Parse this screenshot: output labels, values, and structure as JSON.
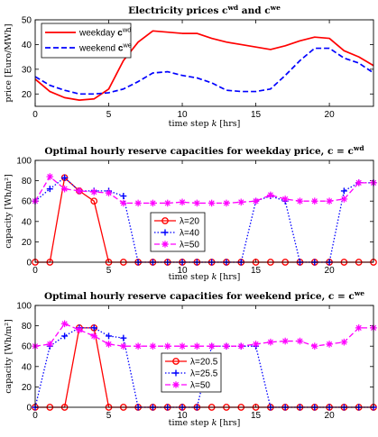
{
  "chart_data": [
    {
      "type": "line",
      "title": "Electricity prices cwd and cwe",
      "title_main": "Electricity prices ",
      "title_c1": "c",
      "title_sup1": "wd",
      "title_and": " and ",
      "title_c2": "c",
      "title_sup2": "we",
      "xlabel_pre": "time step ",
      "xlabel_var": "k",
      "xlabel_post": " [hrs]",
      "ylabel": "price [Euro/MWh]",
      "xlim": [
        0,
        23
      ],
      "ylim": [
        15,
        50
      ],
      "xticks": [
        "0",
        "5",
        "10",
        "15",
        "20"
      ],
      "yticks": [
        "20",
        "30",
        "40",
        "50"
      ],
      "legend_position": "top-left",
      "x": [
        0,
        1,
        2,
        3,
        4,
        5,
        6,
        7,
        8,
        9,
        10,
        11,
        12,
        13,
        14,
        15,
        16,
        17,
        18,
        19,
        20,
        21,
        22,
        23
      ],
      "series": [
        {
          "name": "weekday cwd",
          "legend_text": "weekday",
          "legend_c": "c",
          "legend_sup": "wd",
          "color": "#ff0000",
          "dash": "solid",
          "values": [
            26,
            21,
            18.5,
            17.5,
            18,
            22,
            33.5,
            41,
            45.5,
            45,
            44.5,
            44.5,
            42.5,
            41,
            40,
            39,
            38,
            39.5,
            41.5,
            43,
            42.5,
            37.5,
            35,
            31.5
          ]
        },
        {
          "name": "weekend cwe",
          "legend_text": "weekend",
          "legend_c": "c",
          "legend_sup": "we",
          "color": "#0000ff",
          "dash": "dashed",
          "values": [
            27,
            23.5,
            21.5,
            20,
            20,
            20.5,
            22,
            25,
            28.5,
            29,
            27.5,
            26.5,
            24.5,
            21.5,
            21,
            21,
            22,
            27.5,
            33.5,
            38.5,
            38.5,
            34.5,
            32.5,
            28.5
          ]
        }
      ]
    },
    {
      "type": "line",
      "title": "Optimal hourly reserve capacities for weekday price, c = cwd",
      "title_main": "Optimal hourly reserve capacities for weekday price, ",
      "title_c1": "c",
      "title_eq": " = ",
      "title_c2": "c",
      "title_sup2": "wd",
      "xlabel_pre": "time step ",
      "xlabel_var": "k",
      "xlabel_post": " [hrs]",
      "ylabel": "capacity [Wh/m²]",
      "xlim": [
        0,
        23
      ],
      "ylim": [
        0,
        100
      ],
      "xticks": [
        "0",
        "5",
        "10",
        "15",
        "20"
      ],
      "yticks": [
        "0",
        "20",
        "40",
        "60",
        "80",
        "100"
      ],
      "legend_position": "center-left",
      "x": [
        0,
        1,
        2,
        3,
        4,
        5,
        6,
        7,
        8,
        9,
        10,
        11,
        12,
        13,
        14,
        15,
        16,
        17,
        18,
        19,
        20,
        21,
        22,
        23
      ],
      "series": [
        {
          "name": "λ=20",
          "color": "#ff0000",
          "dash": "solid",
          "marker": "circle",
          "values": [
            0,
            0,
            83,
            70,
            60,
            0,
            0,
            0,
            0,
            0,
            0,
            0,
            0,
            0,
            0,
            0,
            0,
            0,
            0,
            0,
            0,
            0,
            0,
            0
          ]
        },
        {
          "name": "λ=40",
          "color": "#0000ff",
          "dash": "dotted",
          "marker": "plus",
          "values": [
            60,
            72,
            83,
            70,
            70,
            70,
            65,
            0,
            0,
            0,
            0,
            0,
            0,
            0,
            0,
            60,
            65,
            60,
            0,
            0,
            0,
            70,
            78,
            78
          ]
        },
        {
          "name": "λ=50",
          "color": "#ff00ff",
          "dash": "dashed",
          "marker": "star",
          "values": [
            60,
            84,
            72,
            70,
            69,
            68,
            58,
            58,
            58,
            58,
            59,
            58,
            58,
            58,
            59,
            60,
            66,
            62,
            60,
            60,
            60,
            62,
            78,
            78
          ]
        }
      ]
    },
    {
      "type": "line",
      "title": "Optimal hourly reserve capacities for weekend price, c = cwe",
      "title_main": "Optimal hourly reserve capacities for weekend price, ",
      "title_c1": "c",
      "title_eq": " = ",
      "title_c2": "c",
      "title_sup2": "we",
      "xlabel_pre": "time step ",
      "xlabel_var": "k",
      "xlabel_post": " [hrs]",
      "ylabel": "capacity [Wh/m²]",
      "xlim": [
        0,
        23
      ],
      "ylim": [
        0,
        100
      ],
      "xticks": [
        "0",
        "5",
        "10",
        "15",
        "20"
      ],
      "yticks": [
        "0",
        "20",
        "40",
        "60",
        "80",
        "100"
      ],
      "legend_position": "center-left",
      "x": [
        0,
        1,
        2,
        3,
        4,
        5,
        6,
        7,
        8,
        9,
        10,
        11,
        12,
        13,
        14,
        15,
        16,
        17,
        18,
        19,
        20,
        21,
        22,
        23
      ],
      "series": [
        {
          "name": "λ=20.5",
          "color": "#ff0000",
          "dash": "solid",
          "marker": "circle",
          "values": [
            0,
            0,
            0,
            78,
            78,
            0,
            0,
            0,
            0,
            0,
            0,
            0,
            0,
            0,
            0,
            0,
            0,
            0,
            0,
            0,
            0,
            0,
            0,
            0
          ]
        },
        {
          "name": "λ=25.5",
          "color": "#0000ff",
          "dash": "dotted",
          "marker": "plus",
          "values": [
            0,
            60,
            70,
            78,
            78,
            70,
            68,
            0,
            0,
            0,
            0,
            0,
            60,
            60,
            60,
            60,
            0,
            0,
            0,
            0,
            0,
            0,
            0,
            0
          ]
        },
        {
          "name": "λ=50",
          "color": "#ff00ff",
          "dash": "dashed",
          "marker": "star",
          "values": [
            60,
            62,
            82,
            76,
            70,
            62,
            60,
            60,
            60,
            60,
            60,
            60,
            60,
            60,
            60,
            62,
            64,
            65,
            65,
            60,
            62,
            64,
            78,
            78
          ]
        }
      ]
    }
  ]
}
